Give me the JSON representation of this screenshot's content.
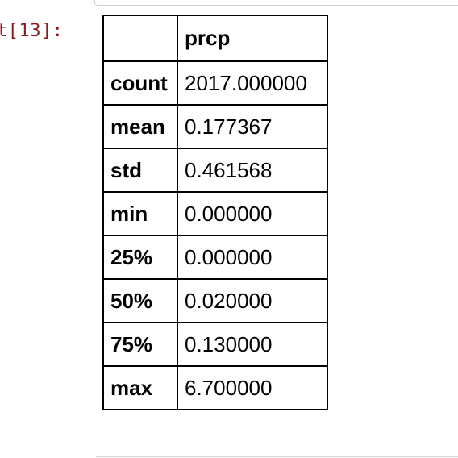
{
  "prompt": "t[13]:",
  "table": {
    "index_header": "",
    "column_header": "prcp",
    "rows": [
      {
        "label": "count",
        "value": "2017.000000"
      },
      {
        "label": "mean",
        "value": "0.177367"
      },
      {
        "label": "std",
        "value": "0.461568"
      },
      {
        "label": "min",
        "value": "0.000000"
      },
      {
        "label": "25%",
        "value": "0.000000"
      },
      {
        "label": "50%",
        "value": "0.020000"
      },
      {
        "label": "75%",
        "value": "0.130000"
      },
      {
        "label": "max",
        "value": "6.700000"
      }
    ]
  }
}
